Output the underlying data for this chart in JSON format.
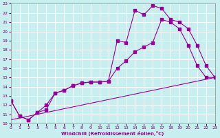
{
  "xlabel": "Windchill (Refroidissement éolien,°C)",
  "bg_color": "#c8eef0",
  "grid_color": "#b0d8da",
  "line_color": "#990099",
  "xmin": 0,
  "xmax": 23,
  "ymin": 10,
  "ymax": 23,
  "line1_x": [
    0,
    1,
    2,
    3,
    4,
    5,
    6,
    7,
    8,
    9,
    10,
    11,
    12,
    13,
    14,
    15,
    16,
    17,
    18,
    19,
    20,
    21,
    22,
    23
  ],
  "line1_y": [
    12.5,
    10.8,
    10.4,
    11.2,
    11.5,
    13.3,
    13.6,
    14.1,
    14.4,
    14.5,
    14.5,
    14.6,
    19.0,
    18.8,
    22.3,
    21.8,
    22.8,
    22.5,
    21.3,
    21.0,
    20.3,
    18.5,
    16.3,
    15.0
  ],
  "line2_x": [
    0,
    1,
    2,
    3,
    4,
    5,
    6,
    7,
    8,
    9,
    10,
    11,
    12,
    13,
    14,
    15,
    16,
    17,
    18,
    19,
    20,
    21,
    22,
    23
  ],
  "line2_y": [
    12.5,
    10.8,
    10.4,
    11.2,
    12.0,
    13.3,
    13.6,
    14.1,
    14.4,
    14.5,
    14.5,
    14.6,
    16.0,
    16.8,
    17.8,
    18.3,
    18.8,
    21.3,
    21.0,
    20.3,
    18.5,
    16.3,
    15.0,
    15.0
  ],
  "line3_x": [
    0,
    23
  ],
  "line3_y": [
    10.4,
    15.0
  ]
}
